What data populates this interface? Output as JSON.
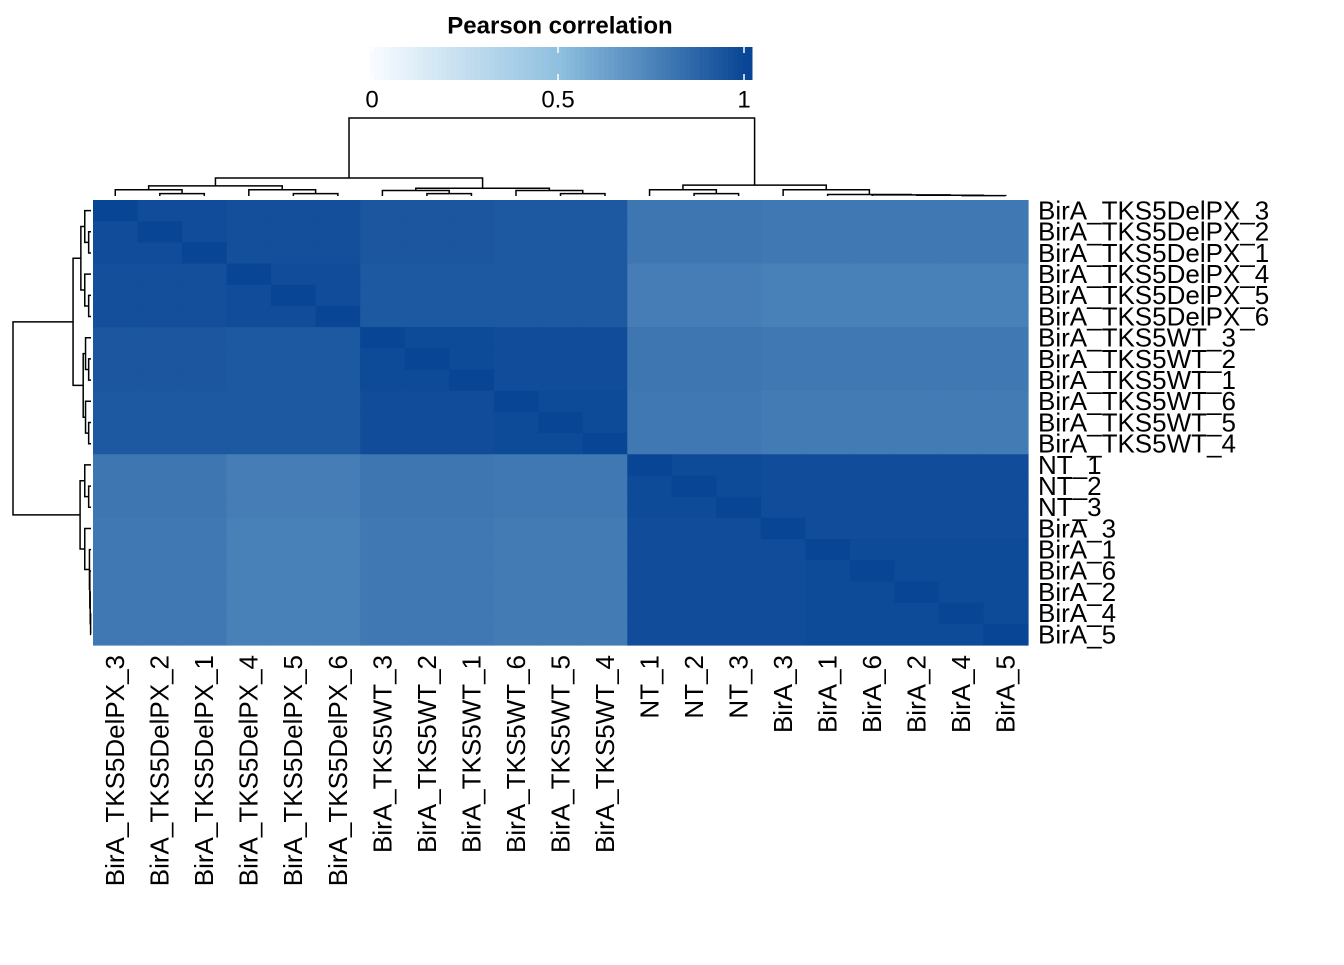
{
  "chart_data": {
    "type": "heatmap",
    "title": "Pearson correlation",
    "rows": [
      "BirA_TKS5DelPX_3",
      "BirA_TKS5DelPX_2",
      "BirA_TKS5DelPX_1",
      "BirA_TKS5DelPX_4",
      "BirA_TKS5DelPX_5",
      "BirA_TKS5DelPX_6",
      "BirA_TKS5WT_3",
      "BirA_TKS5WT_2",
      "BirA_TKS5WT_1",
      "BirA_TKS5WT_6",
      "BirA_TKS5WT_5",
      "BirA_TKS5WT_4",
      "NT_1",
      "NT_2",
      "NT_3",
      "BirA_3",
      "BirA_1",
      "BirA_6",
      "BirA_2",
      "BirA_4",
      "BirA_5"
    ],
    "columns": [
      "BirA_TKS5DelPX_3",
      "BirA_TKS5DelPX_2",
      "BirA_TKS5DelPX_1",
      "BirA_TKS5DelPX_4",
      "BirA_TKS5DelPX_5",
      "BirA_TKS5DelPX_6",
      "BirA_TKS5WT_3",
      "BirA_TKS5WT_2",
      "BirA_TKS5WT_1",
      "BirA_TKS5WT_6",
      "BirA_TKS5WT_5",
      "BirA_TKS5WT_4",
      "NT_1",
      "NT_2",
      "NT_3",
      "BirA_3",
      "BirA_1",
      "BirA_6",
      "BirA_2",
      "BirA_4",
      "BirA_5"
    ],
    "matrix": [
      [
        1,
        0.97,
        0.97,
        0.96,
        0.96,
        0.96,
        0.93,
        0.93,
        0.93,
        0.92,
        0.92,
        0.92,
        0.8,
        0.8,
        0.8,
        0.79,
        0.79,
        0.79,
        0.79,
        0.79,
        0.79
      ],
      [
        0.97,
        1,
        0.97,
        0.96,
        0.96,
        0.96,
        0.93,
        0.93,
        0.93,
        0.92,
        0.92,
        0.92,
        0.8,
        0.8,
        0.8,
        0.79,
        0.79,
        0.79,
        0.79,
        0.79,
        0.79
      ],
      [
        0.97,
        0.97,
        1,
        0.96,
        0.96,
        0.96,
        0.93,
        0.93,
        0.93,
        0.92,
        0.92,
        0.92,
        0.8,
        0.8,
        0.8,
        0.79,
        0.79,
        0.79,
        0.79,
        0.79,
        0.79
      ],
      [
        0.96,
        0.96,
        0.96,
        1,
        0.97,
        0.97,
        0.92,
        0.92,
        0.92,
        0.92,
        0.92,
        0.92,
        0.77,
        0.77,
        0.77,
        0.76,
        0.76,
        0.76,
        0.76,
        0.76,
        0.76
      ],
      [
        0.96,
        0.96,
        0.96,
        0.97,
        1,
        0.97,
        0.92,
        0.92,
        0.92,
        0.92,
        0.92,
        0.92,
        0.77,
        0.77,
        0.77,
        0.76,
        0.76,
        0.76,
        0.76,
        0.76,
        0.76
      ],
      [
        0.96,
        0.96,
        0.96,
        0.97,
        0.97,
        1,
        0.92,
        0.92,
        0.92,
        0.92,
        0.92,
        0.92,
        0.77,
        0.77,
        0.77,
        0.76,
        0.76,
        0.76,
        0.76,
        0.76,
        0.76
      ],
      [
        0.93,
        0.93,
        0.93,
        0.92,
        0.92,
        0.92,
        1,
        0.98,
        0.98,
        0.97,
        0.97,
        0.97,
        0.8,
        0.8,
        0.8,
        0.79,
        0.79,
        0.79,
        0.79,
        0.79,
        0.79
      ],
      [
        0.93,
        0.93,
        0.93,
        0.92,
        0.92,
        0.92,
        0.98,
        1,
        0.98,
        0.97,
        0.97,
        0.97,
        0.8,
        0.8,
        0.8,
        0.79,
        0.79,
        0.79,
        0.79,
        0.79,
        0.79
      ],
      [
        0.93,
        0.93,
        0.93,
        0.92,
        0.92,
        0.92,
        0.98,
        0.98,
        1,
        0.97,
        0.97,
        0.97,
        0.8,
        0.8,
        0.8,
        0.79,
        0.79,
        0.79,
        0.79,
        0.79,
        0.79
      ],
      [
        0.92,
        0.92,
        0.92,
        0.92,
        0.92,
        0.92,
        0.97,
        0.97,
        0.97,
        1,
        0.98,
        0.98,
        0.79,
        0.79,
        0.79,
        0.78,
        0.78,
        0.78,
        0.78,
        0.78,
        0.78
      ],
      [
        0.92,
        0.92,
        0.92,
        0.92,
        0.92,
        0.92,
        0.97,
        0.97,
        0.97,
        0.98,
        1,
        0.98,
        0.79,
        0.79,
        0.79,
        0.78,
        0.78,
        0.78,
        0.78,
        0.78,
        0.78
      ],
      [
        0.92,
        0.92,
        0.92,
        0.92,
        0.92,
        0.92,
        0.97,
        0.97,
        0.97,
        0.98,
        0.98,
        1,
        0.79,
        0.79,
        0.79,
        0.78,
        0.78,
        0.78,
        0.78,
        0.78,
        0.78
      ],
      [
        0.8,
        0.8,
        0.8,
        0.77,
        0.77,
        0.77,
        0.8,
        0.8,
        0.8,
        0.79,
        0.79,
        0.79,
        1,
        0.98,
        0.98,
        0.97,
        0.97,
        0.97,
        0.97,
        0.97,
        0.97
      ],
      [
        0.8,
        0.8,
        0.8,
        0.77,
        0.77,
        0.77,
        0.8,
        0.8,
        0.8,
        0.79,
        0.79,
        0.79,
        0.98,
        1,
        0.98,
        0.97,
        0.97,
        0.97,
        0.97,
        0.97,
        0.97
      ],
      [
        0.8,
        0.8,
        0.8,
        0.77,
        0.77,
        0.77,
        0.8,
        0.8,
        0.8,
        0.79,
        0.79,
        0.79,
        0.98,
        0.98,
        1,
        0.97,
        0.97,
        0.97,
        0.97,
        0.97,
        0.97
      ],
      [
        0.79,
        0.79,
        0.79,
        0.76,
        0.76,
        0.76,
        0.79,
        0.79,
        0.79,
        0.78,
        0.78,
        0.78,
        0.97,
        0.97,
        0.97,
        1,
        0.97,
        0.97,
        0.97,
        0.97,
        0.97
      ],
      [
        0.79,
        0.79,
        0.79,
        0.76,
        0.76,
        0.76,
        0.79,
        0.79,
        0.79,
        0.78,
        0.78,
        0.78,
        0.97,
        0.97,
        0.97,
        0.97,
        1,
        0.98,
        0.98,
        0.98,
        0.98
      ],
      [
        0.79,
        0.79,
        0.79,
        0.76,
        0.76,
        0.76,
        0.79,
        0.79,
        0.79,
        0.78,
        0.78,
        0.78,
        0.97,
        0.97,
        0.97,
        0.97,
        0.98,
        1,
        0.98,
        0.98,
        0.98
      ],
      [
        0.79,
        0.79,
        0.79,
        0.76,
        0.76,
        0.76,
        0.79,
        0.79,
        0.79,
        0.78,
        0.78,
        0.78,
        0.97,
        0.97,
        0.97,
        0.97,
        0.98,
        0.98,
        1,
        0.98,
        0.98
      ],
      [
        0.79,
        0.79,
        0.79,
        0.76,
        0.76,
        0.76,
        0.79,
        0.79,
        0.79,
        0.78,
        0.78,
        0.78,
        0.97,
        0.97,
        0.97,
        0.97,
        0.98,
        0.98,
        0.98,
        1,
        0.98
      ],
      [
        0.79,
        0.79,
        0.79,
        0.76,
        0.76,
        0.76,
        0.79,
        0.79,
        0.79,
        0.78,
        0.78,
        0.78,
        0.97,
        0.97,
        0.97,
        0.97,
        0.98,
        0.98,
        0.98,
        0.98,
        1
      ]
    ],
    "legend_ticks": [
      0,
      0.5,
      1
    ],
    "colors": [
      "#f7fbff",
      "#8ebfdf",
      "#084594"
    ]
  }
}
